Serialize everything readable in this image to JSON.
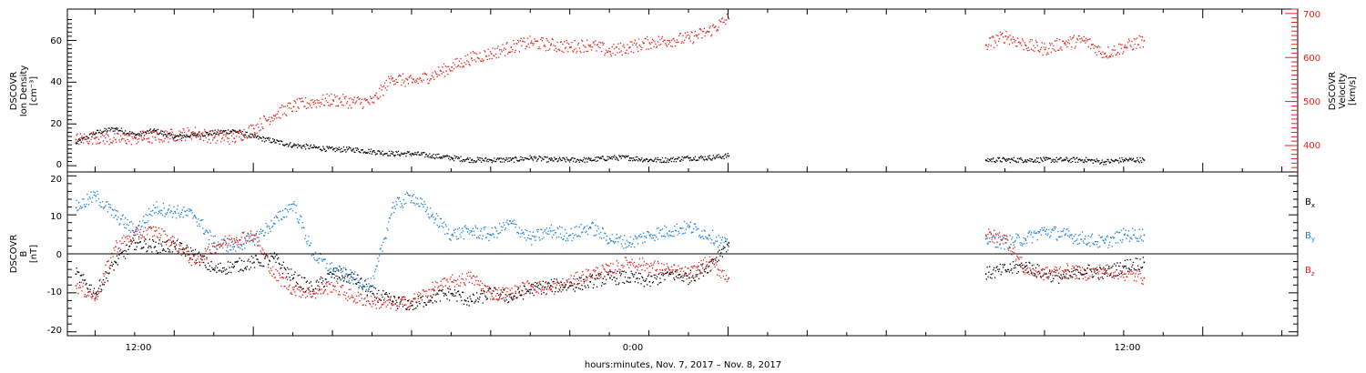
{
  "chart_data": [
    {
      "type": "scatter",
      "panel": "ion-density-velocity",
      "ylabel_left": [
        "DSCOVR",
        "Ion Density",
        "[cm⁻³]"
      ],
      "ylabel_right": [
        "DSCOVR",
        "Velocity",
        "[km/s]"
      ],
      "ylim_left": [
        -3,
        75
      ],
      "ylim_right": [
        340,
        710
      ],
      "yticks_left": [
        "0",
        "20",
        "40",
        "60"
      ],
      "yticks_right": [
        "400",
        "500",
        "600",
        "700"
      ],
      "series": [
        {
          "axis": "left",
          "color": "#000000",
          "x": [
            7.5,
            8,
            8.5,
            9,
            9.5,
            10,
            10.5,
            11,
            11.5,
            12,
            12.5,
            13,
            13.5,
            14,
            14.5,
            15,
            15.5,
            16,
            16.5,
            17,
            17.5,
            18,
            18.5,
            19,
            19.5,
            20,
            20.5,
            21,
            21.5,
            22,
            22.5,
            23,
            23.5,
            24,
            30.5,
            31,
            31.5,
            32,
            32.5,
            33,
            33.5,
            34,
            34.5
          ],
          "y": [
            11,
            16,
            18,
            15,
            17,
            14,
            15,
            16,
            17,
            14,
            12,
            10,
            9,
            8,
            8,
            7,
            6,
            6,
            5,
            4,
            3,
            3,
            3,
            4,
            3,
            3,
            3,
            4,
            4,
            3,
            3,
            4,
            4,
            5,
            3,
            3,
            3,
            3,
            3,
            3,
            2,
            3,
            3
          ]
        },
        {
          "axis": "right",
          "color": "#e0211a",
          "x": [
            7.5,
            8,
            8.5,
            9,
            9.5,
            10,
            10.5,
            11,
            11.5,
            12,
            12.5,
            13,
            13.5,
            14,
            14.5,
            15,
            15.5,
            16,
            16.5,
            17,
            17.5,
            18,
            18.5,
            19,
            19.5,
            20,
            20.5,
            21,
            21.5,
            22,
            22.5,
            23,
            23.5,
            24,
            30.5,
            31,
            31.5,
            32,
            32.5,
            33,
            33.5,
            34,
            34.5
          ],
          "y": [
            415,
            420,
            415,
            418,
            420,
            425,
            430,
            420,
            418,
            440,
            470,
            490,
            500,
            505,
            500,
            500,
            555,
            545,
            560,
            580,
            600,
            610,
            625,
            635,
            630,
            625,
            630,
            615,
            625,
            635,
            640,
            645,
            660,
            690,
            630,
            650,
            630,
            620,
            635,
            640,
            610,
            625,
            640
          ]
        }
      ]
    },
    {
      "type": "scatter",
      "panel": "magnetic-field",
      "ylabel": [
        "DSCOVR",
        "B",
        "[nT]"
      ],
      "ylim": [
        -21,
        21
      ],
      "yticks": [
        "-20",
        "-10",
        "0",
        "10",
        "20"
      ],
      "legend_placement": "right",
      "series": [
        {
          "name": "Bx",
          "label_main": "B",
          "label_sub": "x",
          "color": "#000000",
          "x": [
            7.5,
            8,
            8.5,
            9,
            9.5,
            10,
            10.5,
            11,
            11.5,
            12,
            12.5,
            13,
            13.5,
            14,
            14.5,
            15,
            15.5,
            16,
            16.5,
            17,
            17.5,
            18,
            18.5,
            19,
            19.5,
            20,
            20.5,
            21,
            21.5,
            22,
            22.5,
            23,
            23.5,
            24,
            30.5,
            31,
            31.5,
            32,
            32.5,
            33,
            33.5,
            34,
            34.5
          ],
          "y": [
            -5,
            -10,
            -2,
            3,
            2,
            2,
            0,
            -4,
            -3,
            -2,
            -1,
            -6,
            -9,
            -5,
            -6,
            -10,
            -12,
            -13,
            -11,
            -10,
            -12,
            -10,
            -11,
            -9,
            -8,
            -8,
            -7,
            -6,
            -6,
            -7,
            -5,
            -6,
            -3,
            3,
            -5,
            -4,
            -3,
            -5,
            -6,
            -4,
            -5,
            -3,
            -2
          ]
        },
        {
          "name": "By",
          "label_main": "B",
          "label_sub": "y",
          "color": "#1a7fd4",
          "x": [
            7.5,
            8,
            8.5,
            9,
            9.5,
            10,
            10.5,
            11,
            11.5,
            12,
            12.5,
            13,
            13.5,
            14,
            14.5,
            15,
            15.5,
            16,
            16.5,
            17,
            17.5,
            18,
            18.5,
            19,
            19.5,
            20,
            20.5,
            21,
            21.5,
            22,
            22.5,
            23,
            23.5,
            24,
            30.5,
            31,
            31.5,
            32,
            32.5,
            33,
            33.5,
            34,
            34.5
          ],
          "y": [
            12,
            15,
            10,
            6,
            12,
            11,
            10,
            3,
            2,
            4,
            8,
            13,
            0,
            -4,
            -6,
            -8,
            12,
            15,
            10,
            5,
            6,
            5,
            8,
            4,
            6,
            5,
            7,
            4,
            3,
            5,
            6,
            7,
            5,
            2,
            4,
            3,
            4,
            6,
            5,
            4,
            3,
            5,
            5
          ]
        },
        {
          "name": "Bz",
          "label_main": "B",
          "label_sub": "z",
          "color": "#e0211a",
          "x": [
            7.5,
            8,
            8.5,
            9,
            9.5,
            10,
            10.5,
            11,
            11.5,
            12,
            12.5,
            13,
            13.5,
            14,
            14.5,
            15,
            15.5,
            16,
            16.5,
            17,
            17.5,
            18,
            18.5,
            19,
            19.5,
            20,
            20.5,
            21,
            21.5,
            22,
            22.5,
            23,
            23.5,
            24,
            30.5,
            31,
            31.5,
            32,
            32.5,
            33,
            33.5,
            34,
            34.5
          ],
          "y": [
            -8,
            -11,
            2,
            5,
            6,
            3,
            -2,
            2,
            4,
            5,
            -5,
            -9,
            -10,
            -8,
            -11,
            -12,
            -13,
            -12,
            -9,
            -7,
            -6,
            -10,
            -10,
            -8,
            -9,
            -7,
            -5,
            -4,
            -2,
            -3,
            -4,
            -5,
            -2,
            -6,
            5,
            4,
            -4,
            -5,
            -4,
            -5,
            -4,
            -5,
            -6
          ]
        }
      ]
    }
  ],
  "axis": {
    "xlim": [
      7.3,
      38.4
    ],
    "xticks": [
      {
        "x": 12,
        "label": "12:00"
      },
      {
        "x": 24,
        "label": "0:00"
      },
      {
        "x": 36,
        "label": "12:00"
      }
    ],
    "xlabel": "hours:minutes, Nov.  7, 2017 – Nov.  8, 2017"
  },
  "colors": {
    "black": "#000000",
    "red": "#e0211a",
    "blue": "#1a7fd4"
  }
}
